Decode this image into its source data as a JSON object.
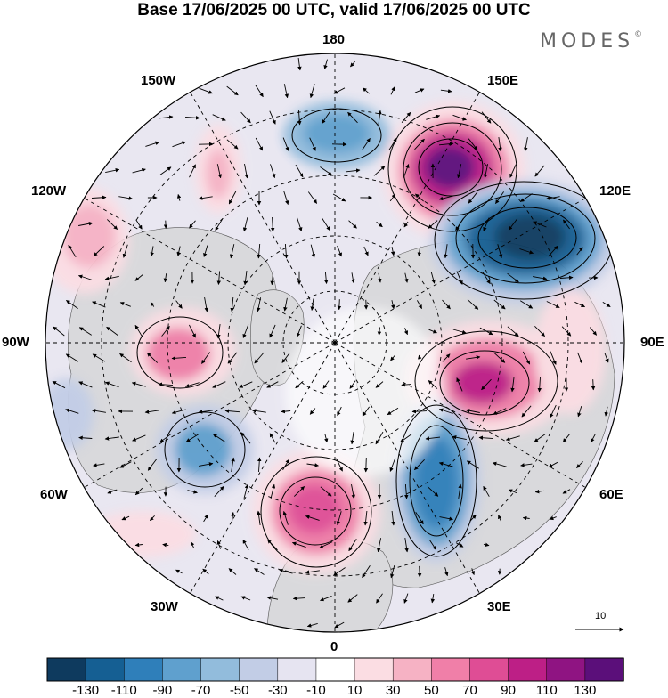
{
  "title": "Base 17/06/2025 00 UTC, valid 17/06/2025 00 UTC",
  "brand": {
    "name": "MODES",
    "mark": "©"
  },
  "projection": "north-polar-stereographic",
  "longitude_labels": {
    "lon_180": "180",
    "lon_150e": "150E",
    "lon_120e": "120E",
    "lon_90e": "90E",
    "lon_60e": "60E",
    "lon_30e": "30E",
    "lon_0": "0",
    "lon_30w": "30W",
    "lon_60w": "60W",
    "lon_90w": "90W",
    "lon_120w": "120W",
    "lon_150w": "150W"
  },
  "reference_vector": {
    "value": "10"
  },
  "colorbar": {
    "colors": [
      "#0e3a5e",
      "#155f93",
      "#2f7fba",
      "#5fa0ce",
      "#92bcdc",
      "#c2cde6",
      "#e6e4f1",
      "#ffffff",
      "#fbdde3",
      "#f6b2c4",
      "#f07fa8",
      "#df4d95",
      "#bd1f86",
      "#8f1482",
      "#5b0f7a"
    ],
    "ticks": [
      "-130",
      "-110",
      "-90",
      "-70",
      "-50",
      "-30",
      "-10",
      "10",
      "30",
      "50",
      "70",
      "90",
      "110",
      "130"
    ]
  },
  "anomaly_centers": [
    {
      "kind": "positive",
      "level": 110,
      "near": "150E 55N"
    },
    {
      "kind": "negative",
      "level": -110,
      "near": "120E 50N"
    },
    {
      "kind": "positive",
      "level": 90,
      "near": "75E 55N"
    },
    {
      "kind": "negative",
      "level": -90,
      "near": "35E 60N"
    },
    {
      "kind": "positive",
      "level": 70,
      "near": "10W 60N"
    },
    {
      "kind": "negative",
      "level": -50,
      "near": "60W 55N"
    },
    {
      "kind": "positive",
      "level": 50,
      "near": "95W 60N"
    },
    {
      "kind": "negative",
      "level": -50,
      "near": "175E 50N"
    },
    {
      "kind": "positive",
      "level": 30,
      "near": "150W 45N"
    },
    {
      "kind": "positive",
      "level": 30,
      "near": "125W 40N"
    }
  ]
}
